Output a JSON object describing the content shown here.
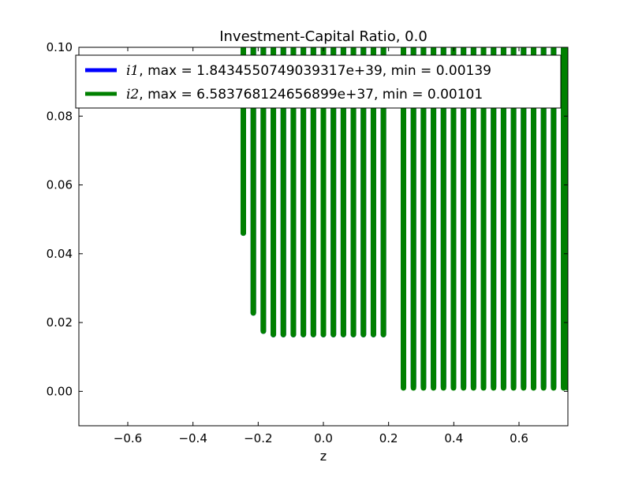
{
  "chart_data": {
    "type": "line",
    "title": "Investment-Capital Ratio, 0.0",
    "xlabel": "z",
    "ylabel": "",
    "xlim": [
      -0.75,
      0.75
    ],
    "ylim": [
      -0.01,
      0.1
    ],
    "xticks": [
      -0.6,
      -0.4,
      -0.2,
      0.0,
      0.2,
      0.4,
      0.6
    ],
    "xtick_labels": [
      "−0.6",
      "−0.4",
      "−0.2",
      "0.0",
      "0.2",
      "0.4",
      "0.6"
    ],
    "yticks": [
      0.0,
      0.02,
      0.04,
      0.06,
      0.08,
      0.1
    ],
    "ytick_labels": [
      "0.00",
      "0.02",
      "0.04",
      "0.06",
      "0.08",
      "0.10"
    ],
    "grid": false,
    "legend_position": "top",
    "series": [
      {
        "name_math": "i1",
        "name_suffix": ", max = 1.8434550749039317e+39, min = 0.00139",
        "color": "#0000ff",
        "spikes": [
          {
            "z": -0.2456,
            "low": 0.046
          },
          {
            "z": -0.2149,
            "low": 0.0228
          },
          {
            "z": -0.1842,
            "low": 0.0175
          },
          {
            "z": -0.1535,
            "low": 0.0165
          },
          {
            "z": -0.1228,
            "low": 0.0165
          },
          {
            "z": -0.0921,
            "low": 0.0165
          },
          {
            "z": -0.0614,
            "low": 0.0165
          },
          {
            "z": -0.0307,
            "low": 0.0165
          },
          {
            "z": 0.0,
            "low": 0.0165
          },
          {
            "z": 0.0307,
            "low": 0.0165
          },
          {
            "z": 0.0614,
            "low": 0.0165
          },
          {
            "z": 0.0921,
            "low": 0.0165
          },
          {
            "z": 0.1228,
            "low": 0.0165
          },
          {
            "z": 0.1535,
            "low": 0.0165
          },
          {
            "z": 0.1842,
            "low": 0.0165
          },
          {
            "z": 0.2456,
            "low": 0.0014
          },
          {
            "z": 0.2763,
            "low": 0.0014
          },
          {
            "z": 0.307,
            "low": 0.0014
          },
          {
            "z": 0.3377,
            "low": 0.0014
          },
          {
            "z": 0.3684,
            "low": 0.0014
          },
          {
            "z": 0.3991,
            "low": 0.0014
          },
          {
            "z": 0.4298,
            "low": 0.0014
          },
          {
            "z": 0.4605,
            "low": 0.0014
          },
          {
            "z": 0.4912,
            "low": 0.0014
          },
          {
            "z": 0.5219,
            "low": 0.0014
          },
          {
            "z": 0.5526,
            "low": 0.0014
          },
          {
            "z": 0.5833,
            "low": 0.0014
          },
          {
            "z": 0.614,
            "low": 0.0014
          },
          {
            "z": 0.6447,
            "low": 0.0014
          },
          {
            "z": 0.6754,
            "low": 0.0014
          },
          {
            "z": 0.7061,
            "low": 0.0014
          },
          {
            "z": 0.7368,
            "low": 0.0014
          }
        ]
      },
      {
        "name_math": "i2",
        "name_suffix": ", max = 6.583768124656899e+37, min = 0.00101",
        "color": "#008000",
        "spikes": [
          {
            "z": -0.2456,
            "low": 0.046
          },
          {
            "z": -0.2149,
            "low": 0.0228
          },
          {
            "z": -0.1842,
            "low": 0.0175
          },
          {
            "z": -0.1535,
            "low": 0.0165
          },
          {
            "z": -0.1228,
            "low": 0.0165
          },
          {
            "z": -0.0921,
            "low": 0.0165
          },
          {
            "z": -0.0614,
            "low": 0.0165
          },
          {
            "z": -0.0307,
            "low": 0.0165
          },
          {
            "z": 0.0,
            "low": 0.0165
          },
          {
            "z": 0.0307,
            "low": 0.0165
          },
          {
            "z": 0.0614,
            "low": 0.0165
          },
          {
            "z": 0.0921,
            "low": 0.0165
          },
          {
            "z": 0.1228,
            "low": 0.0165
          },
          {
            "z": 0.1535,
            "low": 0.0165
          },
          {
            "z": 0.1842,
            "low": 0.0165
          },
          {
            "z": 0.2456,
            "low": 0.001
          },
          {
            "z": 0.2763,
            "low": 0.001
          },
          {
            "z": 0.307,
            "low": 0.001
          },
          {
            "z": 0.3377,
            "low": 0.001
          },
          {
            "z": 0.3684,
            "low": 0.001
          },
          {
            "z": 0.3991,
            "low": 0.001
          },
          {
            "z": 0.4298,
            "low": 0.001
          },
          {
            "z": 0.4605,
            "low": 0.001
          },
          {
            "z": 0.4912,
            "low": 0.001
          },
          {
            "z": 0.5219,
            "low": 0.001
          },
          {
            "z": 0.5526,
            "low": 0.001
          },
          {
            "z": 0.5833,
            "low": 0.001
          },
          {
            "z": 0.614,
            "low": 0.001
          },
          {
            "z": 0.6447,
            "low": 0.001
          },
          {
            "z": 0.6754,
            "low": 0.001
          },
          {
            "z": 0.7061,
            "low": 0.001
          },
          {
            "z": 0.7368,
            "low": 0.001
          },
          {
            "z": 0.75,
            "low": 0.001
          }
        ]
      }
    ]
  }
}
